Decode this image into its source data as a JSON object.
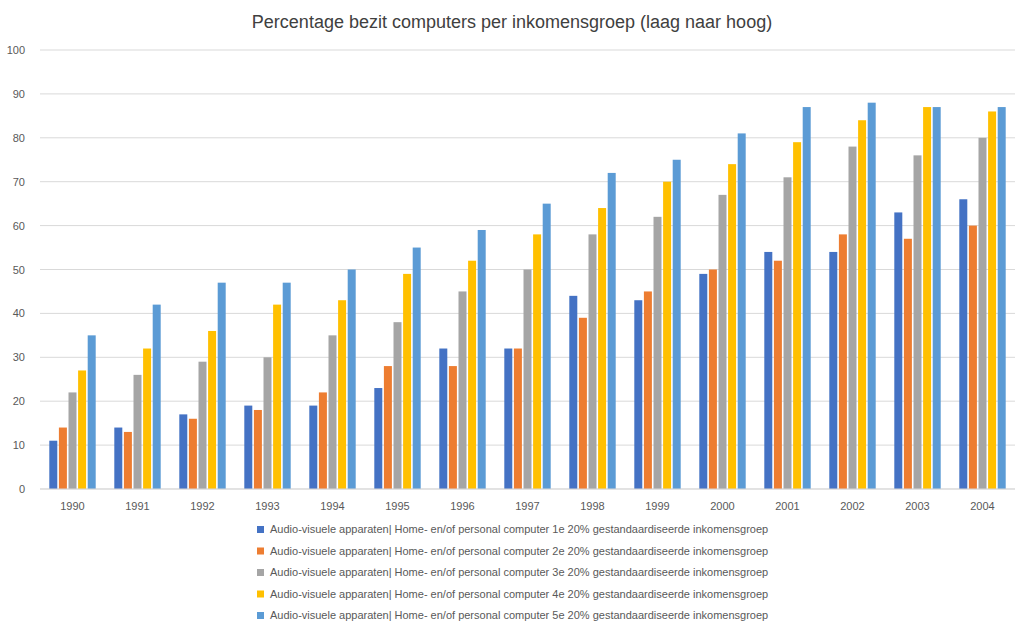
{
  "chart_data": {
    "type": "bar",
    "title": "Percentage bezit computers per inkomensgroep (laag naar hoog)",
    "categories": [
      "1990",
      "1991",
      "1992",
      "1993",
      "1994",
      "1995",
      "1996",
      "1997",
      "1998",
      "1999",
      "2000",
      "2001",
      "2002",
      "2003",
      "2004"
    ],
    "series": [
      {
        "name": "Audio-visuele apparaten| Home- en/of personal computer 1e 20% gestandaardiseerde inkomensgroep",
        "color": "#4472c4",
        "values": [
          11,
          14,
          17,
          19,
          19,
          23,
          32,
          32,
          44,
          43,
          49,
          54,
          54,
          63,
          66
        ]
      },
      {
        "name": "Audio-visuele apparaten| Home- en/of personal computer 2e 20% gestandaardiseerde inkomensgroep",
        "color": "#ed7d31",
        "values": [
          14,
          13,
          16,
          18,
          22,
          28,
          28,
          32,
          39,
          45,
          50,
          52,
          58,
          57,
          60
        ]
      },
      {
        "name": "Audio-visuele apparaten| Home- en/of personal computer 3e 20% gestandaardiseerde inkomensgroep",
        "color": "#a5a5a5",
        "values": [
          22,
          26,
          29,
          30,
          35,
          38,
          45,
          50,
          58,
          62,
          67,
          71,
          78,
          76,
          80
        ]
      },
      {
        "name": "Audio-visuele apparaten| Home- en/of personal computer 4e 20% gestandaardiseerde inkomensgroep",
        "color": "#ffc000",
        "values": [
          27,
          32,
          36,
          42,
          43,
          49,
          52,
          58,
          64,
          70,
          74,
          79,
          84,
          87,
          86
        ]
      },
      {
        "name": "Audio-visuele apparaten| Home- en/of personal computer 5e 20% gestandaardiseerde inkomensgroep",
        "color": "#5b9bd5",
        "values": [
          35,
          42,
          47,
          47,
          50,
          55,
          59,
          65,
          72,
          75,
          81,
          87,
          88,
          87,
          87
        ]
      }
    ],
    "ylim": [
      0,
      100
    ],
    "yticks": [
      0,
      10,
      20,
      30,
      40,
      50,
      60,
      70,
      80,
      90,
      100
    ],
    "grid": true,
    "legend": "bottom"
  }
}
